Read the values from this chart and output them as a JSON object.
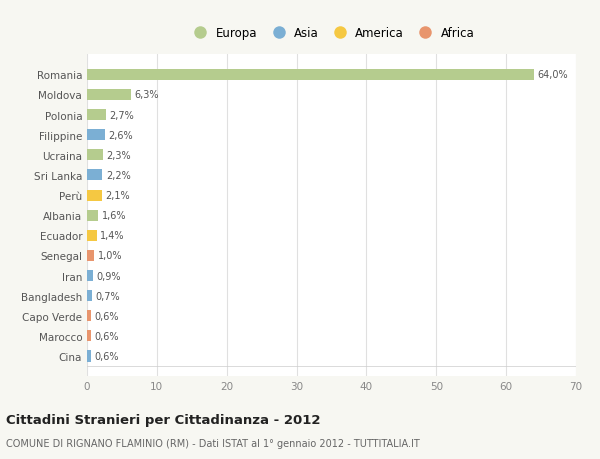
{
  "countries": [
    "Romania",
    "Moldova",
    "Polonia",
    "Filippine",
    "Ucraina",
    "Sri Lanka",
    "Perù",
    "Albania",
    "Ecuador",
    "Senegal",
    "Iran",
    "Bangladesh",
    "Capo Verde",
    "Marocco",
    "Cina"
  ],
  "values": [
    64.0,
    6.3,
    2.7,
    2.6,
    2.3,
    2.2,
    2.1,
    1.6,
    1.4,
    1.0,
    0.9,
    0.7,
    0.6,
    0.6,
    0.6
  ],
  "labels": [
    "64,0%",
    "6,3%",
    "2,7%",
    "2,6%",
    "2,3%",
    "2,2%",
    "2,1%",
    "1,6%",
    "1,4%",
    "1,0%",
    "0,9%",
    "0,7%",
    "0,6%",
    "0,6%",
    "0,6%"
  ],
  "continents": [
    "Europa",
    "Europa",
    "Europa",
    "Asia",
    "Europa",
    "Asia",
    "America",
    "Europa",
    "America",
    "Africa",
    "Asia",
    "Asia",
    "Africa",
    "Africa",
    "Asia"
  ],
  "continent_colors": {
    "Europa": "#b5cc8e",
    "Asia": "#7bafd4",
    "America": "#f5c842",
    "Africa": "#e8956d"
  },
  "legend_order": [
    "Europa",
    "Asia",
    "America",
    "Africa"
  ],
  "title": "Cittadini Stranieri per Cittadinanza - 2012",
  "subtitle": "COMUNE DI RIGNANO FLAMINIO (RM) - Dati ISTAT al 1° gennaio 2012 - TUTTITALIA.IT",
  "xlim": [
    0,
    70
  ],
  "xticks": [
    0,
    10,
    20,
    30,
    40,
    50,
    60,
    70
  ],
  "bg_color": "#f7f7f2",
  "plot_bg_color": "#ffffff",
  "grid_color": "#e0e0e0",
  "bar_height": 0.55
}
